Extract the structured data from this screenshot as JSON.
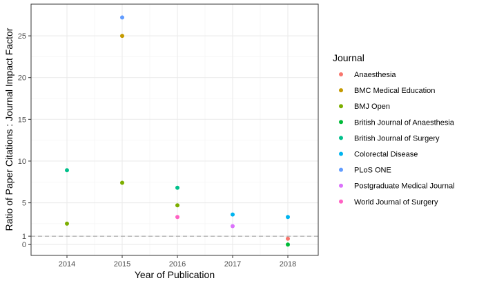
{
  "chart_data": {
    "type": "scatter",
    "title": "",
    "xlabel": "Year of Publication",
    "ylabel": "Ratio of Paper Citations : Journal Impact Factor",
    "xlim": [
      2013.35,
      2018.55
    ],
    "ylim": [
      -1.3,
      28.8
    ],
    "x_ticks": [
      2014,
      2015,
      2016,
      2017,
      2018
    ],
    "x_tick_labels": [
      "2014",
      "2015",
      "2016",
      "2017",
      "2018"
    ],
    "y_ticks": [
      0,
      1,
      5,
      10,
      15,
      20,
      25
    ],
    "y_tick_labels": [
      "0",
      "1",
      "5",
      "10",
      "15",
      "20",
      "25"
    ],
    "grid": true,
    "reference_line": {
      "y": 1,
      "style": "dashed",
      "color": "#999999"
    },
    "legend": {
      "title": "Journal",
      "position": "right"
    },
    "series": [
      {
        "name": "Anaesthesia",
        "color": "#F8766D",
        "points": [
          {
            "x": 2018,
            "y": 0.7
          }
        ]
      },
      {
        "name": "BMC Medical Education",
        "color": "#C49A00",
        "points": [
          {
            "x": 2015,
            "y": 25.0
          }
        ]
      },
      {
        "name": "BMJ Open",
        "color": "#7CAE00",
        "points": [
          {
            "x": 2014,
            "y": 2.5
          },
          {
            "x": 2015,
            "y": 7.4
          },
          {
            "x": 2016,
            "y": 4.7
          }
        ]
      },
      {
        "name": "British Journal of Anaesthesia",
        "color": "#00BA38",
        "points": [
          {
            "x": 2018,
            "y": 0.0
          }
        ]
      },
      {
        "name": "British Journal of Surgery",
        "color": "#00C08B",
        "points": [
          {
            "x": 2014,
            "y": 8.9
          },
          {
            "x": 2016,
            "y": 6.8
          }
        ]
      },
      {
        "name": "Colorectal Disease",
        "color": "#00B4EF",
        "points": [
          {
            "x": 2017,
            "y": 3.6
          },
          {
            "x": 2018,
            "y": 3.3
          }
        ]
      },
      {
        "name": "PLoS ONE",
        "color": "#619CFF",
        "points": [
          {
            "x": 2015,
            "y": 27.2
          }
        ]
      },
      {
        "name": "Postgraduate Medical Journal",
        "color": "#DB72FB",
        "points": [
          {
            "x": 2017,
            "y": 2.2
          }
        ]
      },
      {
        "name": "World Journal of Surgery",
        "color": "#FF61C3",
        "points": [
          {
            "x": 2016,
            "y": 3.3
          }
        ]
      }
    ]
  }
}
